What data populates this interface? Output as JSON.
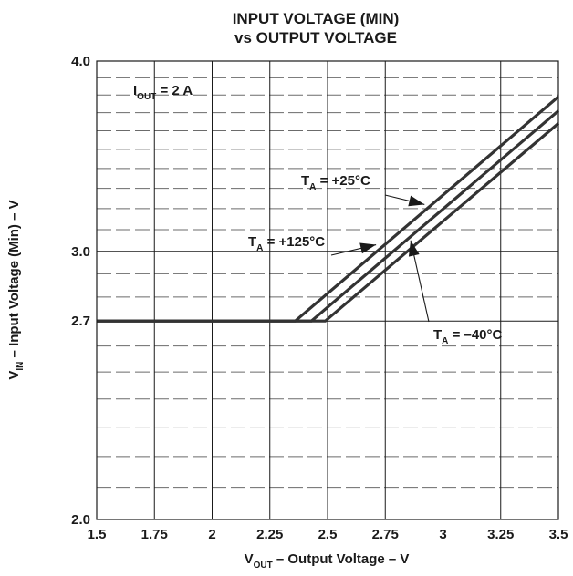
{
  "chart_data": {
    "type": "line",
    "title_line1": "INPUT VOLTAGE (MIN)",
    "title_line2": "vs OUTPUT VOLTAGE",
    "xlabel": {
      "main": "V",
      "sub": "OUT",
      "rest": " – Output Voltage – V"
    },
    "ylabel": {
      "main": "V",
      "sub": "IN",
      "rest": " – Input Voltage (Min) – V"
    },
    "xlim": [
      1.5,
      3.5
    ],
    "ylim": [
      2.0,
      4.0
    ],
    "y_scale": "log",
    "grid": true,
    "x_ticks": [
      "1.5",
      "1.75",
      "2",
      "2.25",
      "2.5",
      "2.75",
      "3",
      "3.25",
      "3.5"
    ],
    "y_ticks": [
      {
        "value": 2.0,
        "label": "2.0"
      },
      {
        "value": 2.7,
        "label": "2.7"
      },
      {
        "value": 3.0,
        "label": "3.0"
      },
      {
        "value": 4.0,
        "label": "4.0"
      }
    ],
    "condition": {
      "main": "I",
      "sub": "OUT",
      "rest": " = 2 A"
    },
    "series": [
      {
        "name": "T_A = +125°C",
        "x": [
          1.5,
          2.36,
          3.5
        ],
        "y": [
          2.7,
          2.7,
          3.79
        ]
      },
      {
        "name": "T_A = +25°C",
        "x": [
          1.5,
          2.43,
          3.5
        ],
        "y": [
          2.7,
          2.7,
          3.71
        ]
      },
      {
        "name": "T_A = −40°C",
        "x": [
          1.5,
          2.49,
          3.5
        ],
        "y": [
          2.7,
          2.7,
          3.64
        ]
      }
    ],
    "annotations": [
      {
        "main": "T",
        "sub": "A",
        "rest": " = +25°C",
        "arrow_to": {
          "x": 2.92,
          "y": 3.22
        }
      },
      {
        "main": "T",
        "sub": "A",
        "rest": " = +125°C",
        "arrow_to": {
          "x": 2.71,
          "y": 3.03
        }
      },
      {
        "main": "T",
        "sub": "A",
        "rest": " = –40°C",
        "arrow_to": {
          "x": 2.86,
          "y": 3.05
        }
      }
    ],
    "colors": {
      "line": "#333333",
      "grid_major": "#1a1a1a",
      "grid_dash": "#6b6b6b",
      "background": "#ffffff"
    }
  }
}
